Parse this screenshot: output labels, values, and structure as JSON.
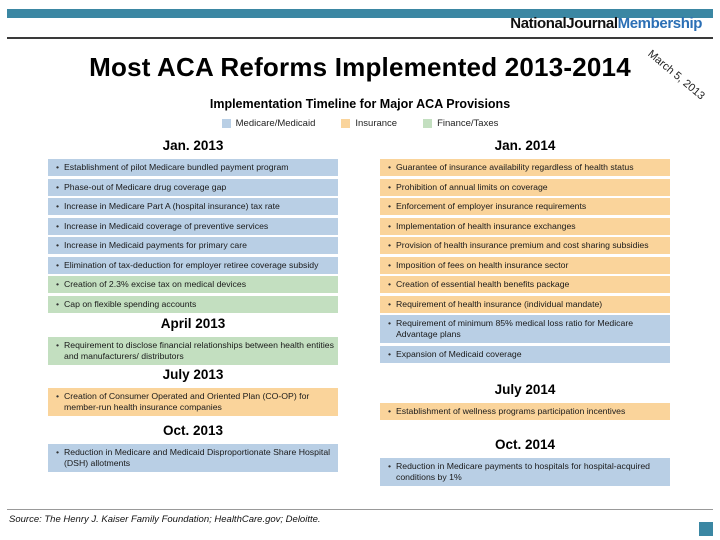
{
  "header": {
    "brand": {
      "part1": "NationalJournal",
      "part2": "Membership"
    },
    "date_stamp": "March 5, 2013"
  },
  "title": "Most ACA Reforms Implemented 2013-2014",
  "subtitle": "Implementation Timeline for Major ACA Provisions",
  "colors": {
    "medicare": "#B9CFE5",
    "insurance": "#FAD49B",
    "finance": "#C3DFC0",
    "accent_teal": "#3B87A3",
    "brand_blue": "#2B6FB5"
  },
  "legend": [
    {
      "label": "Medicare/Medicaid",
      "category": "medicare"
    },
    {
      "label": "Insurance",
      "category": "insurance"
    },
    {
      "label": "Finance/Taxes",
      "category": "finance"
    }
  ],
  "columns": [
    {
      "sections": [
        {
          "header": "Jan. 2013",
          "items": [
            {
              "text": "Establishment of pilot Medicare bundled payment program",
              "category": "medicare"
            },
            {
              "text": "Phase-out of Medicare drug coverage gap",
              "category": "medicare"
            },
            {
              "text": "Increase in Medicare Part A (hospital insurance) tax rate",
              "category": "medicare"
            },
            {
              "text": "Increase in Medicaid coverage of preventive services",
              "category": "medicare"
            },
            {
              "text": "Increase in Medicaid payments for primary care",
              "category": "medicare"
            },
            {
              "text": "Elimination of tax-deduction for employer retiree coverage subsidy",
              "category": "medicare"
            },
            {
              "text": "Creation of 2.3% excise tax on medical devices",
              "category": "finance"
            },
            {
              "text": "Cap on flexible spending accounts",
              "category": "finance"
            }
          ]
        },
        {
          "header": "April 2013",
          "items": [
            {
              "text": "Requirement to disclose financial relationships between health entities and manufacturers/ distributors",
              "category": "finance"
            }
          ]
        },
        {
          "header": "July 2013",
          "items": [
            {
              "text": "Creation of Consumer Operated and Oriented Plan (CO-OP) for member-run health insurance companies",
              "category": "insurance"
            }
          ]
        },
        {
          "header": "Oct. 2013",
          "items": [
            {
              "text": "Reduction in Medicare and Medicaid Disproportionate Share Hospital (DSH) allotments",
              "category": "medicare"
            }
          ]
        }
      ]
    },
    {
      "sections": [
        {
          "header": "Jan. 2014",
          "items": [
            {
              "text": "Guarantee of insurance availability regardless of health status",
              "category": "insurance"
            },
            {
              "text": "Prohibition of annual limits on coverage",
              "category": "insurance"
            },
            {
              "text": "Enforcement of employer insurance requirements",
              "category": "insurance"
            },
            {
              "text": "Implementation of health insurance exchanges",
              "category": "insurance"
            },
            {
              "text": "Provision of health insurance premium and cost sharing subsidies",
              "category": "insurance"
            },
            {
              "text": "Imposition of fees on health insurance sector",
              "category": "insurance"
            },
            {
              "text": "Creation of essential health benefits package",
              "category": "insurance"
            },
            {
              "text": "Requirement of health insurance (individual mandate)",
              "category": "insurance"
            },
            {
              "text": "Requirement of minimum 85% medical loss ratio for Medicare Advantage plans",
              "category": "medicare"
            },
            {
              "text": "Expansion of Medicaid coverage",
              "category": "medicare"
            }
          ]
        },
        {
          "header": "July 2014",
          "items": [
            {
              "text": "Establishment of wellness programs participation incentives",
              "category": "insurance"
            }
          ]
        },
        {
          "header": "Oct. 2014",
          "items": [
            {
              "text": "Reduction in Medicare payments to hospitals for hospital-acquired conditions by 1%",
              "category": "medicare"
            }
          ]
        }
      ]
    }
  ],
  "footer": {
    "source": "Source: The Henry J. Kaiser Family Foundation; HealthCare.gov; Deloitte."
  }
}
